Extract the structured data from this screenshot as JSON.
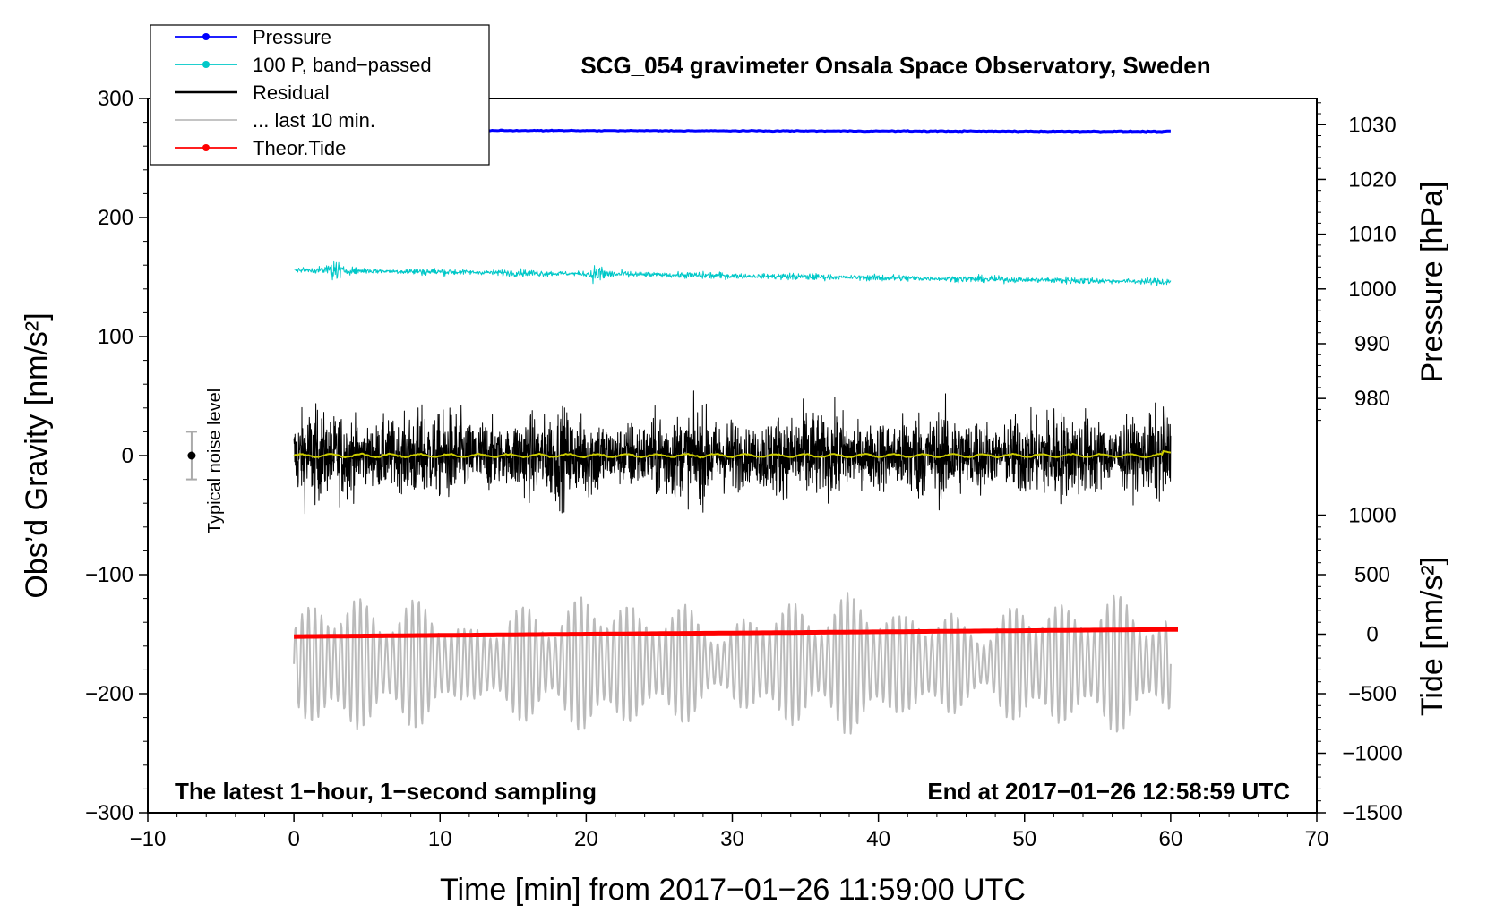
{
  "chart_data": {
    "type": "line",
    "title": "SCG_054 gravimeter Onsala Space Observatory, Sweden",
    "xlabel": "Time [min] from 2017−01−26 11:59:00 UTC",
    "ylabel_left": "Obs’d Gravity [nm/s²]",
    "ylabel_right_top": "Pressure [hPa]",
    "ylabel_right_bottom": "Tide [nm/s²]",
    "xlim": [
      -10,
      70
    ],
    "ylim": [
      -300,
      300
    ],
    "x_ticks": [
      -10,
      0,
      10,
      20,
      30,
      40,
      50,
      60,
      70
    ],
    "x_tick_labels": [
      "−10",
      "0",
      "10",
      "20",
      "30",
      "40",
      "50",
      "60",
      "70"
    ],
    "y_ticks": [
      -300,
      -200,
      -100,
      0,
      100,
      200,
      300
    ],
    "y_tick_labels": [
      "−300",
      "−200",
      "−100",
      "0",
      "100",
      "200",
      "300"
    ],
    "pressure_axis": {
      "ticks": [
        980,
        990,
        1000,
        1010,
        1020,
        1030
      ],
      "tick_labels": [
        "980",
        "990",
        "1000",
        "1010",
        "1020",
        "1030"
      ],
      "gravity_at_1000": 140,
      "gravity_per_hpa": 4.6
    },
    "tide_axis": {
      "ticks": [
        -1500,
        -1000,
        -500,
        0,
        500,
        1000
      ],
      "tick_labels": [
        "−1500",
        "−1000",
        "−500",
        "0",
        "500",
        "1000"
      ],
      "gravity_at_0": -150,
      "gravity_per_unit": 0.1
    },
    "series": [
      {
        "name": "Pressure",
        "color": "#0000ff",
        "marker": true,
        "x_range": [
          0,
          60
        ],
        "y_start": 273,
        "y_end": 272,
        "amplitude": 0.6
      },
      {
        "name": "100 P, band−passed",
        "color": "#00c8c8",
        "marker": true,
        "x_range": [
          0,
          60
        ],
        "y_start": 156,
        "y_end": 146,
        "amplitude": 4
      },
      {
        "name": "Residual",
        "color": "#000000",
        "marker": false,
        "x_range": [
          0,
          60
        ],
        "y_start": 0,
        "y_end": 0,
        "amplitude": 40
      },
      {
        "name": "... last 10 min.",
        "color": "#bbbbbb",
        "marker": false,
        "x_range": [
          0,
          60
        ],
        "y_start": -175,
        "y_end": -175,
        "amplitude": 45
      },
      {
        "name": "Theor.Tide",
        "color": "#ff0000",
        "marker": true,
        "x_range": [
          0,
          60.5
        ],
        "y_start": -152,
        "y_end": -146,
        "amplitude": 0
      }
    ],
    "smoothed_residual": {
      "color": "#cccc00",
      "x_range": [
        0,
        60
      ],
      "y": 0
    },
    "noise_level": {
      "label": "Typical noise level",
      "x": -7,
      "y": 0,
      "error": 20
    },
    "annotations": {
      "bottom_left": "The latest 1−hour, 1−second sampling",
      "bottom_right": "End at 2017−01−26 12:58:59 UTC"
    },
    "legend_position": "top-left"
  }
}
